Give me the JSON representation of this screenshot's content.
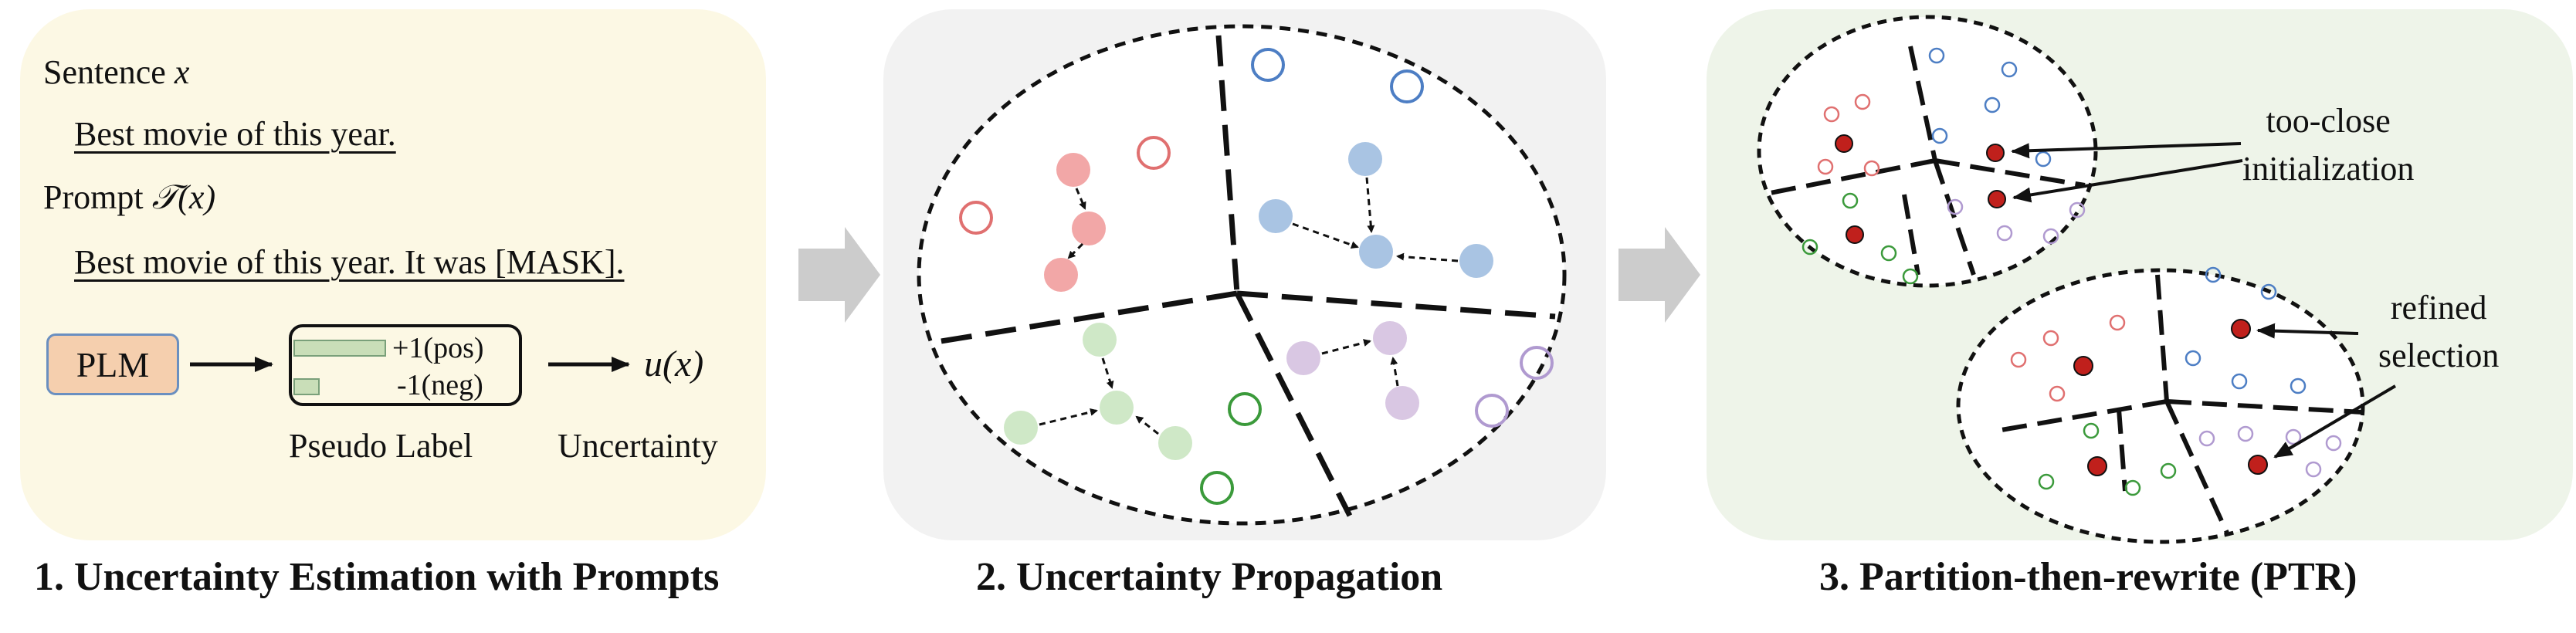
{
  "panel1": {
    "sentence_label": "Sentence",
    "sentence_var": "x",
    "sentence_text": "Best movie of this year.",
    "prompt_label": "Prompt",
    "prompt_var": "𝒯(x)",
    "prompt_text": "Best movie of this year. It was [MASK].",
    "plm_label": "PLM",
    "pos_label": "+1(pos)",
    "neg_label": "-1(neg)",
    "pseudo_label_caption": "Pseudo Label",
    "uncertainty_func": "u(x)",
    "uncertainty_caption": "Uncertainty",
    "caption": "1. Uncertainty Estimation with Prompts"
  },
  "panel2": {
    "caption": "2. Uncertainty Propagation"
  },
  "panel3": {
    "annotation_top": [
      "too-close",
      "initialization"
    ],
    "annotation_bottom": [
      "refined",
      "selection"
    ],
    "caption": "3. Partition-then-rewrite (PTR)"
  },
  "colors": {
    "red_fill": "#f2a7a7",
    "blue_fill": "#a9c4e3",
    "green_fill": "#cfe8c7",
    "purple_fill": "#d9c7e3",
    "red_outline": "#e07070",
    "blue_outline": "#4d7ec4",
    "green_outline": "#3b9a3b",
    "purple_outline": "#b09ad0",
    "selected_red": "#c0201c",
    "plm_box": "#f5cfae",
    "bar_green": "#c9deb8"
  }
}
